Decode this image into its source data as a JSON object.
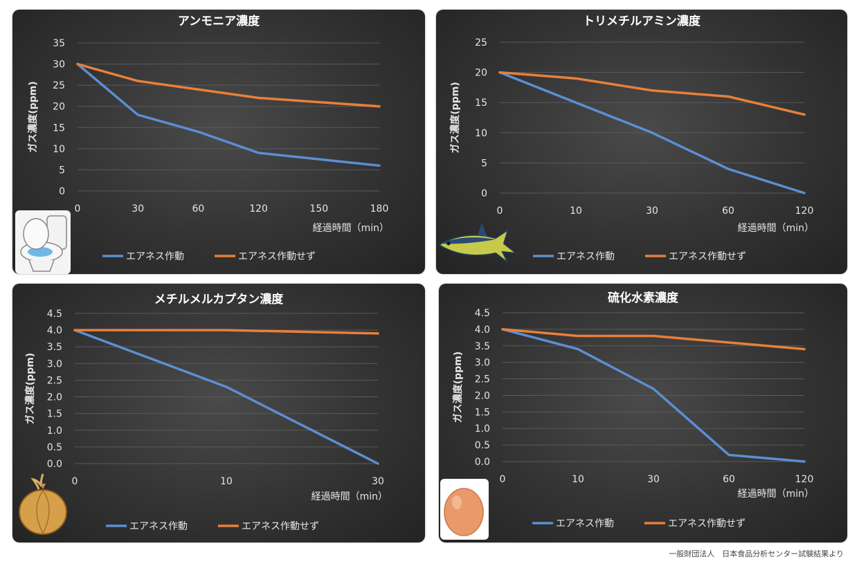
{
  "footer_note": "一般財団法人　日本食品分析センター試験結果より",
  "colors": {
    "with_device": "#5b8fd1",
    "without_device": "#e8803a"
  },
  "chart_data": [
    {
      "type": "line",
      "title": "アンモニア濃度",
      "icon": "toilet-icon",
      "categories": [
        "0",
        "30",
        "60",
        "120",
        "150",
        "180"
      ],
      "ylabel": "ガス濃度(ppm)",
      "xlabel": "経過時間（min）",
      "ylim": [
        0,
        35
      ],
      "yticks": [
        "0",
        "5",
        "10",
        "15",
        "20",
        "25",
        "30",
        "35"
      ],
      "grid": true,
      "legend": "bottom",
      "series": [
        {
          "name": "エアネス作動",
          "values": [
            30,
            18,
            14,
            9,
            7.5,
            6
          ]
        },
        {
          "name": "エアネス作動せず",
          "values": [
            30,
            26,
            24,
            22,
            21,
            20
          ]
        }
      ]
    },
    {
      "type": "line",
      "title": "トリメチルアミン濃度",
      "icon": "fish-icon",
      "categories": [
        "0",
        "10",
        "30",
        "60",
        "120"
      ],
      "ylabel": "ガス濃度(ppm)",
      "xlabel": "経過時間（min）",
      "ylim": [
        0,
        25
      ],
      "yticks": [
        "0",
        "5",
        "10",
        "15",
        "20",
        "25"
      ],
      "grid": true,
      "legend": "bottom",
      "series": [
        {
          "name": "エアネス作動",
          "values": [
            20,
            15,
            10,
            4,
            0
          ]
        },
        {
          "name": "エアネス作動せず",
          "values": [
            20,
            19,
            17,
            16,
            13
          ]
        }
      ]
    },
    {
      "type": "line",
      "title": "メチルメルカプタン濃度",
      "icon": "onion-icon",
      "categories": [
        "0",
        "10",
        "30"
      ],
      "ylabel": "ガス濃度(ppm)",
      "xlabel": "経過時間（min）",
      "ylim": [
        0,
        4.5
      ],
      "yticks": [
        "0.0",
        "0.5",
        "1.0",
        "1.5",
        "2.0",
        "2.5",
        "3.0",
        "3.5",
        "4.0",
        "4.5"
      ],
      "grid": true,
      "legend": "bottom",
      "series": [
        {
          "name": "エアネス作動",
          "values": [
            4.0,
            2.3,
            0.0
          ]
        },
        {
          "name": "エアネス作動せず",
          "values": [
            4.0,
            4.0,
            3.9
          ]
        }
      ]
    },
    {
      "type": "line",
      "title": "硫化水素濃度",
      "icon": "egg-icon",
      "categories": [
        "0",
        "10",
        "30",
        "60",
        "120"
      ],
      "ylabel": "ガス濃度(ppm)",
      "xlabel": "経過時間（min）",
      "ylim": [
        0,
        4.5
      ],
      "yticks": [
        "0.0",
        "0.5",
        "1.0",
        "1.5",
        "2.0",
        "2.5",
        "3.0",
        "3.5",
        "4.0",
        "4.5"
      ],
      "grid": true,
      "legend": "bottom",
      "series": [
        {
          "name": "エアネス作動",
          "values": [
            4.0,
            3.4,
            2.2,
            0.2,
            0.0
          ]
        },
        {
          "name": "エアネス作動せず",
          "values": [
            4.0,
            3.8,
            3.8,
            3.6,
            3.4
          ]
        }
      ]
    }
  ]
}
